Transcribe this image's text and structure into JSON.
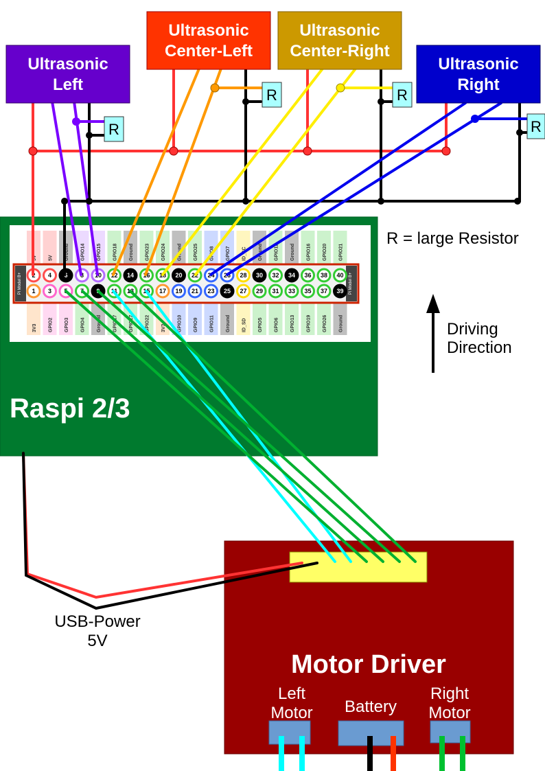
{
  "sensors": [
    {
      "id": "left",
      "line1": "Ultrasonic",
      "line2": "Left",
      "color": "#6600cc"
    },
    {
      "id": "center-left",
      "line1": "Ultrasonic",
      "line2": "Center-Left",
      "color": "#ff3300"
    },
    {
      "id": "center-right",
      "line1": "Ultrasonic",
      "line2": "Center-Right",
      "color": "#cc9900"
    },
    {
      "id": "right",
      "line1": "Ultrasonic",
      "line2": "Right",
      "color": "#0000cc"
    }
  ],
  "resistor_symbol": "R",
  "legend": {
    "resistor": "R = large Resistor"
  },
  "direction": {
    "line1": "Driving",
    "line2": "Direction"
  },
  "raspi": {
    "label": "Raspi 2/3",
    "color": "#007a2e"
  },
  "motor_driver": {
    "title": "Motor Driver",
    "color": "#990000",
    "left_motor": {
      "line1": "Left",
      "line2": "Motor"
    },
    "battery": "Battery",
    "right_motor": {
      "line1": "Right",
      "line2": "Motor"
    }
  },
  "usb_power": {
    "line1": "USB-Power",
    "line2": "5V"
  },
  "gpio": {
    "top_pins": [
      "2",
      "4",
      "6",
      "8",
      "10",
      "12",
      "14",
      "16",
      "18",
      "20",
      "22",
      "24",
      "26",
      "28",
      "30",
      "32",
      "34",
      "36",
      "38",
      "40"
    ],
    "bottom_pins": [
      "1",
      "3",
      "5",
      "7",
      "9",
      "11",
      "13",
      "15",
      "17",
      "19",
      "21",
      "23",
      "25",
      "27",
      "29",
      "31",
      "33",
      "35",
      "37",
      "39"
    ],
    "top_labels": [
      "5V",
      "5V",
      "Ground",
      "GPIO14",
      "GPIO15",
      "GPIO18",
      "Ground",
      "GPIO23",
      "GPIO24",
      "Ground",
      "GPIO25",
      "GPIO8",
      "GPIO7",
      "ID_SC",
      "Ground",
      "GPIO12",
      "Ground",
      "GPIO16",
      "GPIO20",
      "GPIO21"
    ],
    "bottom_labels": [
      "3V3",
      "GPIO2",
      "GPIO3",
      "GPIO4",
      "Ground",
      "GPIO17",
      "GPIO27",
      "GPIO22",
      "3V3",
      "GPIO10",
      "GPIO9",
      "GPIO11",
      "Ground",
      "ID_SD",
      "GPIO5",
      "GPIO6",
      "GPIO13",
      "GPIO19",
      "GPIO26",
      "Ground"
    ],
    "top_colors": [
      "#ff4d4d",
      "#ff4d4d",
      "#000000",
      "#b36bff",
      "#b36bff",
      "#33cc33",
      "#000000",
      "#33cc33",
      "#33cc33",
      "#000000",
      "#33cc33",
      "#3366ff",
      "#3366ff",
      "#ffdd00",
      "#000000",
      "#33cc33",
      "#000000",
      "#33cc33",
      "#33cc33",
      "#33cc33"
    ],
    "bottom_colors": [
      "#ff9933",
      "#ff66cc",
      "#ff66cc",
      "#33cc33",
      "#000000",
      "#33cc33",
      "#33cc33",
      "#33cc33",
      "#ff9933",
      "#3366ff",
      "#3366ff",
      "#3366ff",
      "#000000",
      "#ffdd00",
      "#33cc33",
      "#33cc33",
      "#33cc33",
      "#33cc33",
      "#33cc33",
      "#000000"
    ],
    "board_tag": "Pi Model B+"
  },
  "colors": {
    "red": "#ff3333",
    "black": "#000000",
    "orange": "#ff9900",
    "yellow": "#ffee00",
    "blue": "#0000ee",
    "purple": "#7a00ff",
    "cyan": "#00ffff",
    "green": "#00b030",
    "resistor_fill": "#aaffff"
  }
}
